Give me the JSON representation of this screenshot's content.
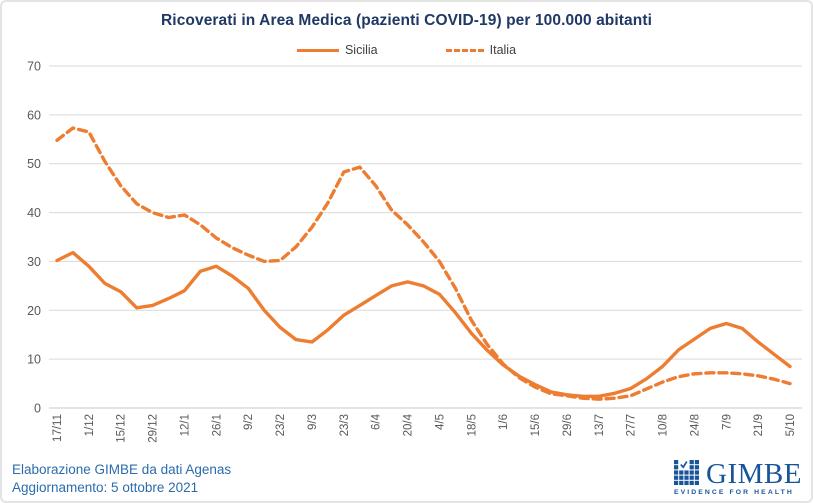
{
  "title": "Ricoverati in Area Medica (pazienti COVID-19) per 100.000 abitanti",
  "footer": {
    "line1": "Elaborazione GIMBE da dati Agenas",
    "line2": "Aggiornamento: 5 ottobre 2021"
  },
  "logo": {
    "wordmark": "GIMBE",
    "tagline": "EVIDENCE FOR HEALTH"
  },
  "colors": {
    "series_orange": "#ED7D31",
    "title_navy": "#1F3864",
    "footer_blue": "#2B6CAD",
    "logo_blue": "#17549A",
    "gridline": "#D9D9D9",
    "axis_line": "#C9C9C9",
    "tick_gray": "#595959",
    "legend_text": "#404040"
  },
  "chart_data": {
    "type": "line",
    "title": "Ricoverati in Area Medica (pazienti COVID-19) per 100.000 abitanti",
    "xlabel": "",
    "ylabel": "",
    "ylim": [
      0,
      70
    ],
    "y_ticks": [
      0,
      10,
      20,
      30,
      40,
      50,
      60,
      70
    ],
    "grid": true,
    "legend_position": "top",
    "x_tick_labels": [
      "17/11",
      "1/12",
      "15/12",
      "29/12",
      "12/1",
      "26/1",
      "9/2",
      "23/2",
      "9/3",
      "23/3",
      "6/4",
      "20/4",
      "4/5",
      "18/5",
      "1/6",
      "15/6",
      "29/6",
      "13/7",
      "27/7",
      "10/8",
      "24/8",
      "7/9",
      "21/9",
      "5/10"
    ],
    "x_tick_every_n_points": 2,
    "x_sampling": "weekly points (every 7 days); labeled ticks every 14 days",
    "series": [
      {
        "name": "Sicilia",
        "line": "solid",
        "values": [
          30.2,
          31.8,
          29.0,
          25.5,
          23.8,
          20.5,
          21.0,
          22.4,
          24.0,
          28.0,
          29.0,
          27.0,
          24.5,
          20.0,
          16.5,
          14.0,
          13.5,
          16.0,
          19.0,
          21.0,
          23.0,
          25.0,
          25.8,
          25.0,
          23.3,
          19.5,
          15.3,
          11.8,
          8.8,
          6.5,
          4.8,
          3.3,
          2.7,
          2.4,
          2.4,
          3.0,
          4.0,
          6.0,
          8.5,
          11.9,
          14.1,
          16.3,
          17.3,
          16.3,
          13.5,
          11.0,
          8.5
        ]
      },
      {
        "name": "Italia",
        "line": "dashed",
        "values": [
          54.8,
          57.3,
          56.5,
          50.5,
          45.5,
          41.8,
          40.0,
          39.0,
          39.5,
          37.5,
          34.8,
          32.8,
          31.3,
          30.0,
          30.2,
          33.0,
          37.0,
          42.0,
          48.3,
          49.3,
          45.5,
          40.5,
          37.5,
          34.0,
          30.0,
          24.5,
          18.0,
          13.0,
          9.0,
          6.2,
          4.3,
          2.9,
          2.5,
          2.0,
          1.8,
          2.0,
          2.5,
          3.9,
          5.3,
          6.4,
          7.0,
          7.2,
          7.2,
          7.0,
          6.6,
          5.9,
          5.0
        ]
      }
    ]
  }
}
